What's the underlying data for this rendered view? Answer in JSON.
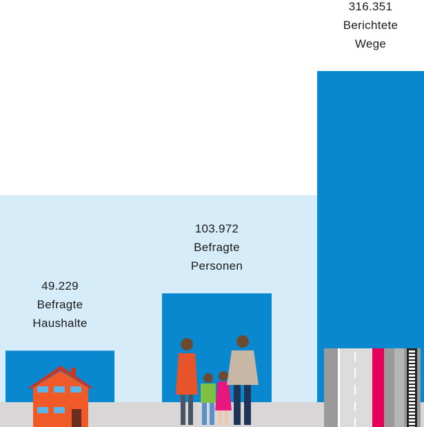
{
  "chart_data": {
    "type": "bar",
    "categories": [
      "Befragte Haushalte",
      "Befragte Personen",
      "Berichtete Wege"
    ],
    "values": [
      49229,
      103972,
      316351
    ],
    "value_labels": [
      "49.229",
      "103.972",
      "316.351"
    ],
    "color": "#0a88cf"
  }
}
